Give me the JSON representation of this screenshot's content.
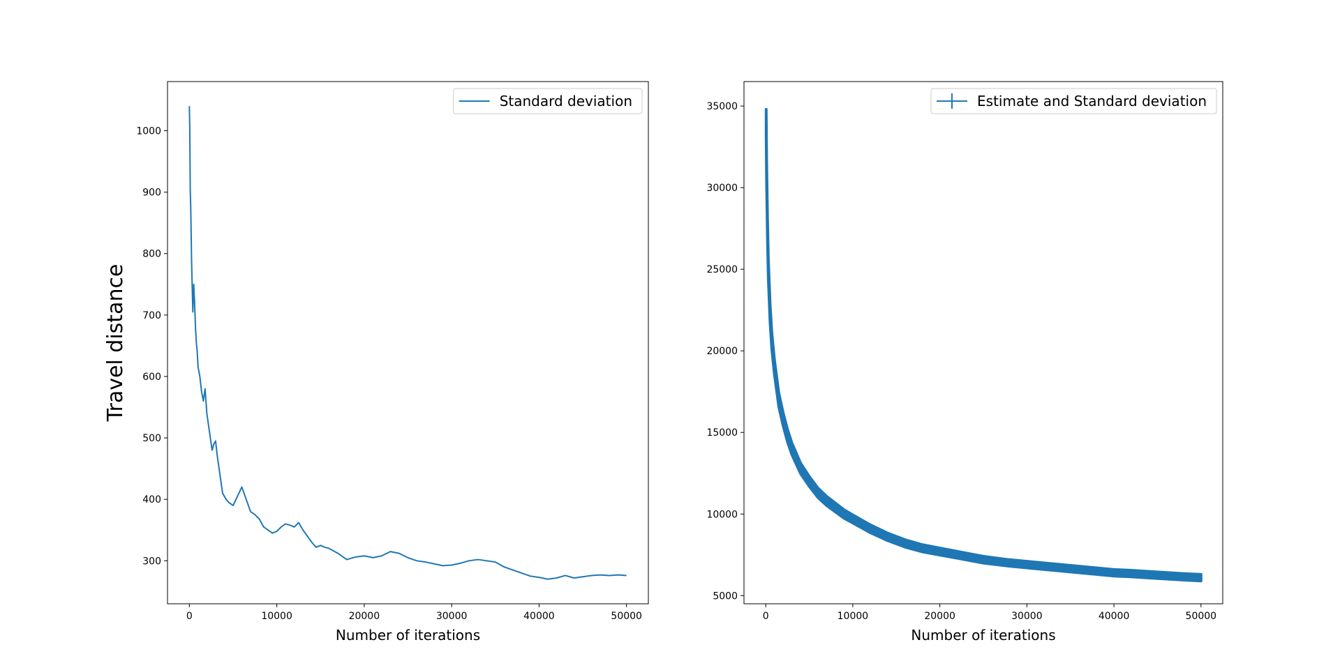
{
  "figure": {
    "colors": {
      "series": "#1f77b4",
      "axes": "#000000",
      "background": "#ffffff",
      "legend_border": "#cccccc"
    }
  },
  "chart_data": [
    {
      "type": "line",
      "ylabel": "Travel distance",
      "xlabel": "Number of iterations",
      "xlim": [
        -2500,
        52500
      ],
      "ylim": [
        230,
        1080
      ],
      "xticks": [
        0,
        10000,
        20000,
        30000,
        40000,
        50000
      ],
      "yticks": [
        300,
        400,
        500,
        600,
        700,
        800,
        900,
        1000
      ],
      "legend": {
        "placement": "top-right",
        "label": "Standard deviation"
      },
      "grid": false,
      "series": [
        {
          "name": "Standard deviation",
          "x": [
            0,
            50,
            100,
            150,
            200,
            250,
            300,
            400,
            500,
            600,
            700,
            800,
            900,
            1000,
            1200,
            1400,
            1600,
            1800,
            2000,
            2200,
            2400,
            2600,
            2800,
            3000,
            3200,
            3400,
            3600,
            3800,
            4000,
            4200,
            4500,
            5000,
            5500,
            6000,
            6500,
            7000,
            7500,
            8000,
            8500,
            9000,
            9500,
            10000,
            10500,
            11000,
            11500,
            12000,
            12500,
            13000,
            13500,
            14000,
            14500,
            15000,
            15500,
            16000,
            17000,
            18000,
            19000,
            20000,
            21000,
            22000,
            23000,
            24000,
            25000,
            26000,
            27000,
            28000,
            29000,
            30000,
            31000,
            32000,
            33000,
            34000,
            35000,
            36000,
            37000,
            38000,
            39000,
            40000,
            41000,
            42000,
            43000,
            44000,
            45000,
            46000,
            47000,
            48000,
            49000,
            50000
          ],
          "values": [
            1040,
            1000,
            905,
            880,
            840,
            790,
            760,
            705,
            750,
            720,
            680,
            655,
            640,
            615,
            600,
            575,
            560,
            580,
            540,
            520,
            500,
            480,
            490,
            495,
            470,
            450,
            430,
            410,
            405,
            400,
            395,
            390,
            405,
            420,
            400,
            380,
            375,
            368,
            355,
            350,
            345,
            348,
            355,
            360,
            358,
            355,
            362,
            350,
            340,
            330,
            322,
            325,
            322,
            320,
            312,
            302,
            306,
            308,
            305,
            308,
            315,
            312,
            305,
            300,
            298,
            295,
            292,
            293,
            296,
            300,
            302,
            300,
            298,
            290,
            285,
            280,
            275,
            273,
            270,
            272,
            276,
            272,
            274,
            276,
            277,
            276,
            277,
            276
          ]
        }
      ]
    },
    {
      "type": "line",
      "xlabel": "Number of iterations",
      "xlim": [
        -2500,
        52500
      ],
      "ylim": [
        4500,
        36500
      ],
      "xticks": [
        0,
        10000,
        20000,
        30000,
        40000,
        50000
      ],
      "yticks": [
        5000,
        10000,
        15000,
        20000,
        25000,
        30000,
        35000
      ],
      "legend": {
        "placement": "top-right",
        "label": "Estimate and Standard deviation"
      },
      "grid": false,
      "series": [
        {
          "name": "Estimate and Standard deviation",
          "x": [
            50,
            100,
            200,
            300,
            500,
            700,
            1000,
            1500,
            2000,
            2500,
            3000,
            3500,
            4000,
            5000,
            6000,
            7000,
            8000,
            9000,
            10000,
            12000,
            14000,
            16000,
            18000,
            20000,
            22000,
            25000,
            28000,
            30000,
            32000,
            35000,
            38000,
            40000,
            42000,
            45000,
            48000,
            50000
          ],
          "values": [
            34000,
            31000,
            27500,
            25000,
            22300,
            20600,
            19000,
            17000,
            15800,
            14800,
            14000,
            13400,
            12800,
            12000,
            11300,
            10800,
            10400,
            10000,
            9700,
            9100,
            8600,
            8200,
            7900,
            7700,
            7500,
            7200,
            7000,
            6900,
            6800,
            6650,
            6500,
            6400,
            6350,
            6250,
            6150,
            6100
          ],
          "errors": [
            800,
            700,
            650,
            600,
            550,
            500,
            450,
            420,
            400,
            380,
            360,
            340,
            320,
            300,
            290,
            280,
            270,
            260,
            250,
            240,
            230,
            225,
            220,
            215,
            210,
            205,
            200,
            200,
            200,
            200,
            200,
            200,
            200,
            200,
            200,
            200
          ]
        }
      ]
    }
  ]
}
